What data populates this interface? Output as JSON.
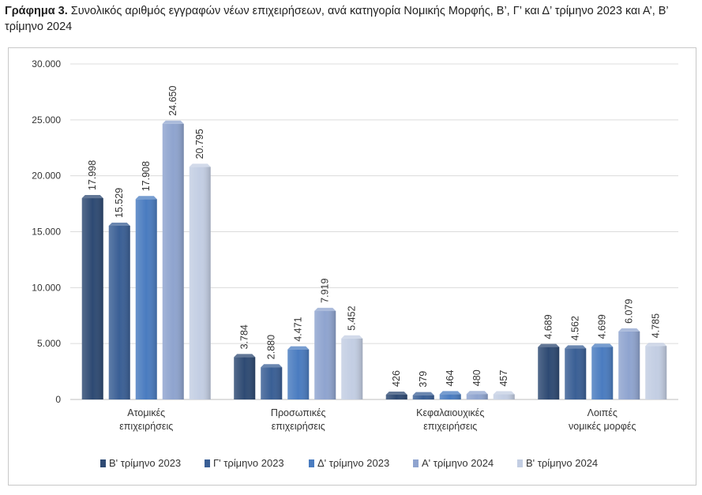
{
  "title": {
    "prefix": "Γράφημα 3.",
    "text": "Συνολικός αριθμός εγγραφών νέων επιχειρήσεων, ανά κατηγορία Νομικής Μορφής, Β’, Γ’ και Δ’ τρίμηνο 2023 και Α’, Β’ τρίμηνο 2024"
  },
  "chart_data": {
    "type": "bar",
    "categories": [
      [
        "Ατομικές",
        "επιχειρήσεις"
      ],
      [
        "Προσωπικές",
        "επιχειρήσεις"
      ],
      [
        "Κεφαλαιουχικές",
        "επιχειρήσεις"
      ],
      [
        "Λοιπές",
        "νομικές μορφές"
      ]
    ],
    "series": [
      {
        "name": "Β' τρίμηνο 2023",
        "color": "#2e4a73",
        "values": [
          17998,
          3784,
          426,
          4689
        ],
        "labels": [
          "17.998",
          "3.784",
          "426",
          "4.689"
        ]
      },
      {
        "name": "Γ' τρίμηνο 2023",
        "color": "#3a5f95",
        "values": [
          15529,
          2880,
          379,
          4562
        ],
        "labels": [
          "15.529",
          "2.880",
          "379",
          "4.562"
        ]
      },
      {
        "name": "Δ' τρίμηνο 2023",
        "color": "#4a7cc0",
        "values": [
          17908,
          4471,
          464,
          4699
        ],
        "labels": [
          "17.908",
          "4.471",
          "464",
          "4.699"
        ]
      },
      {
        "name": "Α' τρίμηνο 2024",
        "color": "#8fa4cf",
        "values": [
          24650,
          7919,
          480,
          6079
        ],
        "labels": [
          "24.650",
          "7.919",
          "480",
          "6.079"
        ]
      },
      {
        "name": "Β' τρίμηνο 2024",
        "color": "#c3cee3",
        "values": [
          20795,
          5452,
          457,
          4785
        ],
        "labels": [
          "20.795",
          "5.452",
          "457",
          "4.785"
        ]
      }
    ],
    "ylim": [
      0,
      30000
    ],
    "yticks": [
      0,
      5000,
      10000,
      15000,
      20000,
      25000,
      30000
    ],
    "ytick_labels": [
      "0",
      "5.000",
      "10.000",
      "15.000",
      "20.000",
      "25.000",
      "30.000"
    ],
    "grid": true,
    "legend": "bottom",
    "xlabel": "",
    "ylabel": ""
  }
}
